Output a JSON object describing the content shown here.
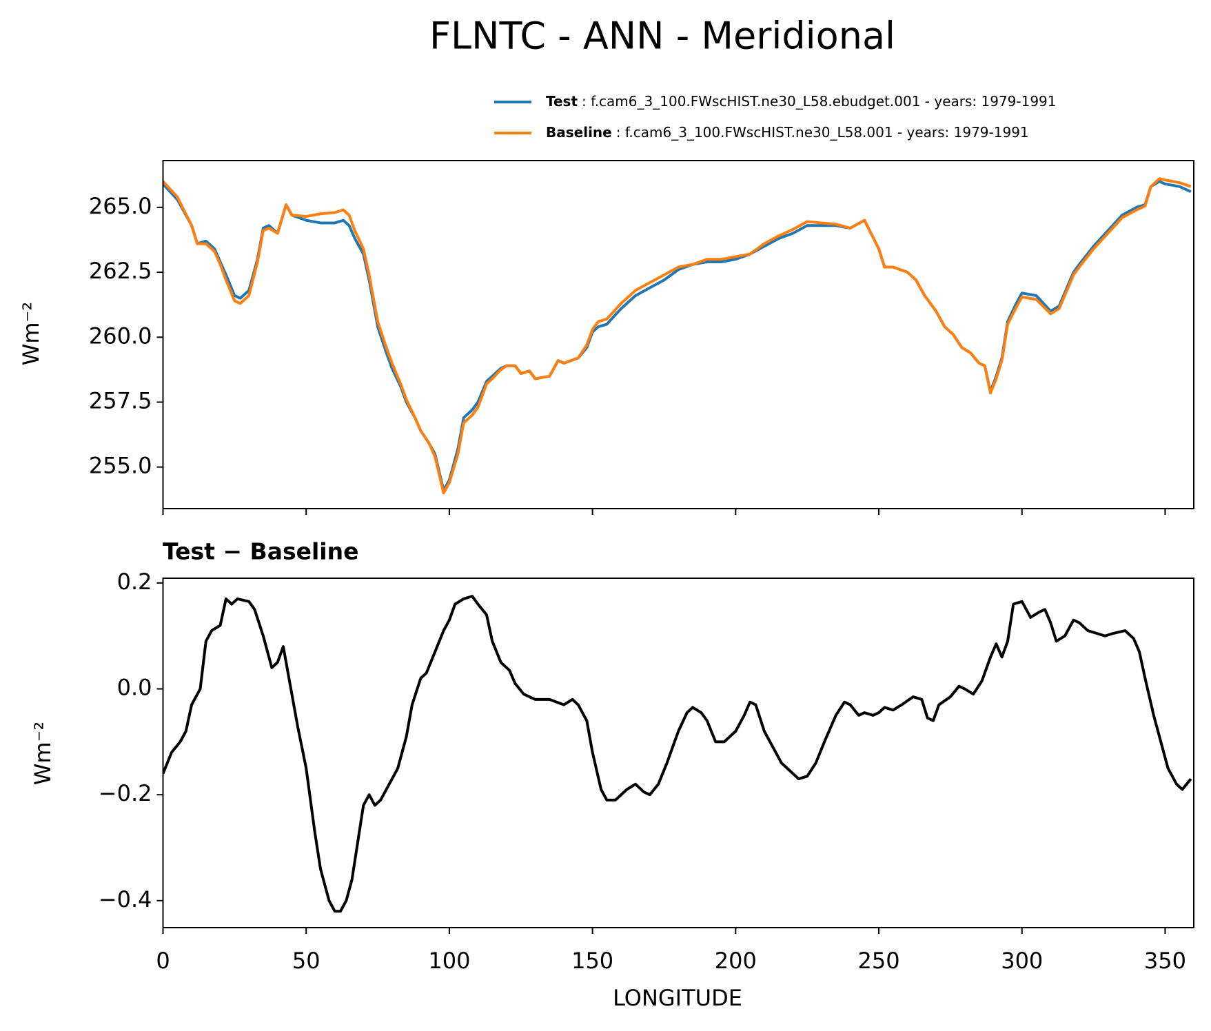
{
  "chart_data": [
    {
      "type": "line",
      "title": "FLNTC - ANN - Meridional",
      "ylabel": "Wm⁻²",
      "xlim": [
        0,
        360
      ],
      "ylim": [
        253.4,
        266.8
      ],
      "xticks": [
        0,
        50,
        100,
        150,
        200,
        250,
        300,
        350
      ],
      "yticks": [
        {
          "value": 255,
          "label": "255.0"
        },
        {
          "value": 257.5,
          "label": "257.5"
        },
        {
          "value": 260,
          "label": "260.0"
        },
        {
          "value": 262.5,
          "label": "262.5"
        },
        {
          "value": 265,
          "label": "265.0"
        }
      ],
      "legend": "upper right",
      "x": [
        0,
        5,
        10,
        12,
        15,
        18,
        20,
        22,
        25,
        27,
        30,
        33,
        35,
        37,
        40,
        43,
        45,
        50,
        55,
        60,
        63,
        65,
        67,
        70,
        72,
        75,
        78,
        80,
        83,
        85,
        88,
        90,
        93,
        95,
        98,
        100,
        103,
        105,
        108,
        110,
        113,
        115,
        118,
        120,
        123,
        125,
        128,
        130,
        135,
        138,
        140,
        145,
        148,
        150,
        152,
        155,
        160,
        163,
        165,
        170,
        175,
        180,
        185,
        190,
        195,
        200,
        205,
        210,
        215,
        220,
        225,
        230,
        235,
        240,
        245,
        250,
        252,
        255,
        260,
        263,
        266,
        270,
        273,
        276,
        279,
        282,
        285,
        287,
        289,
        291,
        293,
        295,
        298,
        300,
        305,
        310,
        313,
        318,
        320,
        325,
        330,
        335,
        340,
        343,
        345,
        348,
        350,
        355,
        359
      ],
      "series": [
        {
          "name": "Test",
          "description": ": f.cam6_3_100.FWscHIST.ne30_L58.ebudget.001 - years: 1979-1991",
          "color": "#1f77b4",
          "values": [
            265.9,
            265.3,
            264.3,
            263.6,
            263.7,
            263.4,
            262.9,
            262.4,
            261.6,
            261.5,
            261.8,
            263.0,
            264.2,
            264.3,
            264.0,
            265.1,
            264.7,
            264.5,
            264.4,
            264.4,
            264.5,
            264.3,
            263.8,
            263.2,
            262.2,
            260.4,
            259.4,
            258.8,
            258.1,
            257.5,
            256.9,
            256.4,
            255.9,
            255.5,
            254.1,
            254.5,
            255.7,
            256.9,
            257.2,
            257.5,
            258.3,
            258.5,
            258.8,
            258.9,
            258.9,
            258.6,
            258.7,
            258.4,
            258.5,
            259.1,
            259.0,
            259.2,
            259.6,
            260.2,
            260.4,
            260.5,
            261.1,
            261.4,
            261.6,
            261.9,
            262.2,
            262.6,
            262.8,
            262.9,
            262.9,
            263.0,
            263.2,
            263.5,
            263.8,
            264.0,
            264.3,
            264.3,
            264.3,
            264.2,
            264.5,
            263.4,
            262.7,
            262.7,
            262.5,
            262.2,
            261.6,
            261.0,
            260.4,
            260.1,
            259.6,
            259.4,
            259.0,
            258.9,
            257.9,
            258.5,
            259.2,
            260.6,
            261.3,
            261.7,
            261.6,
            261.0,
            261.2,
            262.5,
            262.8,
            263.5,
            264.1,
            264.7,
            265.0,
            265.1,
            265.8,
            266.0,
            265.9,
            265.8,
            265.6
          ]
        },
        {
          "name": "Baseline",
          "description": ": f.cam6_3_100.FWscHIST.ne30_L58.001 - years: 1979-1991",
          "color": "#ff7f0e",
          "values": [
            266.0,
            265.4,
            264.3,
            263.6,
            263.6,
            263.3,
            262.8,
            262.2,
            261.4,
            261.3,
            261.6,
            262.9,
            264.1,
            264.2,
            264.0,
            265.1,
            264.7,
            264.65,
            264.75,
            264.8,
            264.9,
            264.7,
            264.1,
            263.4,
            262.4,
            260.6,
            259.6,
            259.0,
            258.2,
            257.6,
            256.9,
            256.4,
            255.9,
            255.4,
            254.0,
            254.4,
            255.5,
            256.7,
            257.0,
            257.3,
            258.2,
            258.4,
            258.75,
            258.9,
            258.9,
            258.6,
            258.7,
            258.4,
            258.5,
            259.1,
            259.0,
            259.2,
            259.7,
            260.3,
            260.6,
            260.7,
            261.3,
            261.6,
            261.8,
            262.1,
            262.4,
            262.7,
            262.8,
            263.0,
            263.0,
            263.1,
            263.2,
            263.6,
            263.9,
            264.15,
            264.45,
            264.4,
            264.35,
            264.2,
            264.5,
            263.4,
            262.7,
            262.7,
            262.5,
            262.2,
            261.6,
            261.0,
            260.4,
            260.1,
            259.6,
            259.4,
            259.0,
            258.9,
            257.85,
            258.4,
            259.1,
            260.5,
            261.15,
            261.55,
            261.45,
            260.9,
            261.1,
            262.4,
            262.7,
            263.4,
            264.0,
            264.6,
            264.9,
            265.05,
            265.8,
            266.1,
            266.05,
            265.95,
            265.8
          ]
        }
      ]
    },
    {
      "type": "line",
      "title": "Test − Baseline",
      "xlabel": "LONGITUDE",
      "ylabel": "Wm⁻²",
      "xlim": [
        0,
        360
      ],
      "ylim": [
        -0.451,
        0.209
      ],
      "xticks": [
        0,
        50,
        100,
        150,
        200,
        250,
        300,
        350
      ],
      "yticks": [
        {
          "value": -0.4,
          "label": "−0.4"
        },
        {
          "value": -0.2,
          "label": "−0.2"
        },
        {
          "value": 0,
          "label": "0.0"
        },
        0.2
      ],
      "x": [
        0,
        3,
        6,
        8,
        10,
        13,
        15,
        17,
        20,
        22,
        24,
        26,
        30,
        32,
        35,
        38,
        40,
        42,
        44,
        47,
        50,
        53,
        55,
        58,
        60,
        62,
        64,
        66,
        68,
        70,
        72,
        74,
        76,
        78,
        80,
        82,
        85,
        87,
        90,
        92,
        95,
        98,
        100,
        102,
        105,
        108,
        110,
        113,
        115,
        118,
        121,
        123,
        126,
        130,
        135,
        140,
        143,
        145,
        148,
        150,
        153,
        155,
        158,
        162,
        165,
        168,
        170,
        173,
        176,
        180,
        183,
        185,
        188,
        190,
        193,
        196,
        200,
        203,
        205,
        207,
        210,
        213,
        216,
        220,
        222,
        225,
        228,
        231,
        235,
        238,
        240,
        243,
        245,
        248,
        250,
        252,
        255,
        258,
        262,
        265,
        267,
        269,
        271,
        275,
        278,
        280,
        283,
        286,
        289,
        291,
        293,
        295,
        297,
        300,
        303,
        306,
        308,
        310,
        312,
        315,
        318,
        320,
        323,
        326,
        329,
        332,
        336,
        339,
        341,
        343,
        346,
        349,
        351,
        354,
        356,
        359
      ],
      "series": [
        {
          "name": "Test − Baseline",
          "color": "#000000",
          "values": [
            -0.16,
            -0.12,
            -0.1,
            -0.08,
            -0.03,
            0.0,
            0.09,
            0.11,
            0.12,
            0.17,
            0.16,
            0.17,
            0.165,
            0.15,
            0.1,
            0.04,
            0.05,
            0.08,
            0.02,
            -0.07,
            -0.15,
            -0.27,
            -0.34,
            -0.4,
            -0.42,
            -0.42,
            -0.4,
            -0.36,
            -0.29,
            -0.22,
            -0.2,
            -0.22,
            -0.21,
            -0.19,
            -0.17,
            -0.15,
            -0.09,
            -0.03,
            0.02,
            0.03,
            0.07,
            0.11,
            0.13,
            0.16,
            0.17,
            0.175,
            0.16,
            0.14,
            0.09,
            0.05,
            0.035,
            0.01,
            -0.01,
            -0.02,
            -0.02,
            -0.03,
            -0.02,
            -0.03,
            -0.06,
            -0.12,
            -0.19,
            -0.21,
            -0.21,
            -0.19,
            -0.18,
            -0.195,
            -0.2,
            -0.18,
            -0.14,
            -0.08,
            -0.045,
            -0.035,
            -0.045,
            -0.06,
            -0.1,
            -0.1,
            -0.08,
            -0.05,
            -0.025,
            -0.03,
            -0.08,
            -0.11,
            -0.14,
            -0.16,
            -0.17,
            -0.165,
            -0.14,
            -0.1,
            -0.05,
            -0.025,
            -0.03,
            -0.05,
            -0.045,
            -0.05,
            -0.045,
            -0.035,
            -0.04,
            -0.03,
            -0.015,
            -0.02,
            -0.055,
            -0.06,
            -0.03,
            -0.015,
            0.005,
            0.0,
            -0.01,
            0.015,
            0.06,
            0.085,
            0.06,
            0.09,
            0.16,
            0.165,
            0.135,
            0.145,
            0.15,
            0.125,
            0.09,
            0.1,
            0.13,
            0.125,
            0.11,
            0.105,
            0.1,
            0.105,
            0.11,
            0.095,
            0.07,
            0.02,
            -0.05,
            -0.11,
            -0.15,
            -0.18,
            -0.19,
            -0.17
          ]
        }
      ]
    }
  ]
}
